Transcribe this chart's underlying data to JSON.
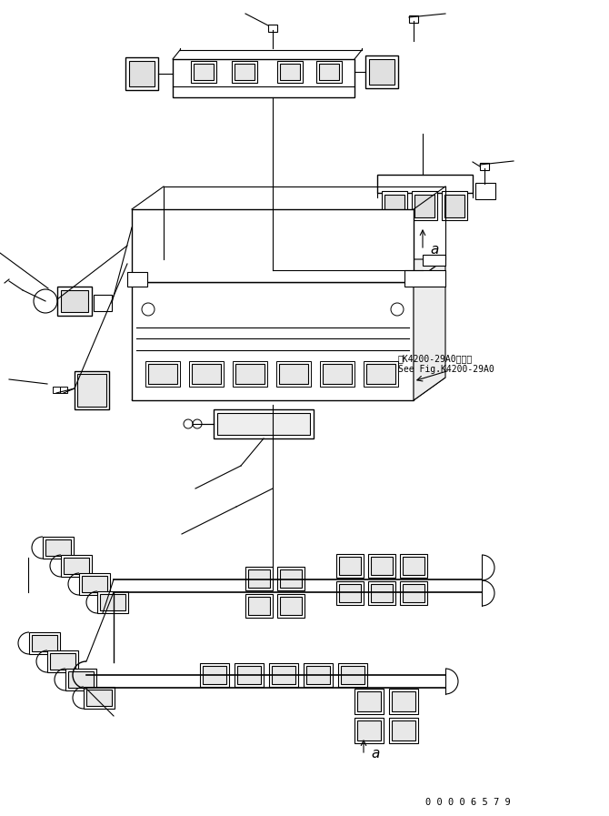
{
  "bg_color": "#ffffff",
  "line_color": "#000000",
  "fig_width": 6.7,
  "fig_height": 8.97,
  "dpi": 100,
  "part_number": "0 0 0 0 6 5 7 9",
  "ref_text_line1": "第K4200-29A0図参照",
  "ref_text_line2": "See Fig.K4200-29A0",
  "label_a1": "a",
  "label_a2": "a"
}
